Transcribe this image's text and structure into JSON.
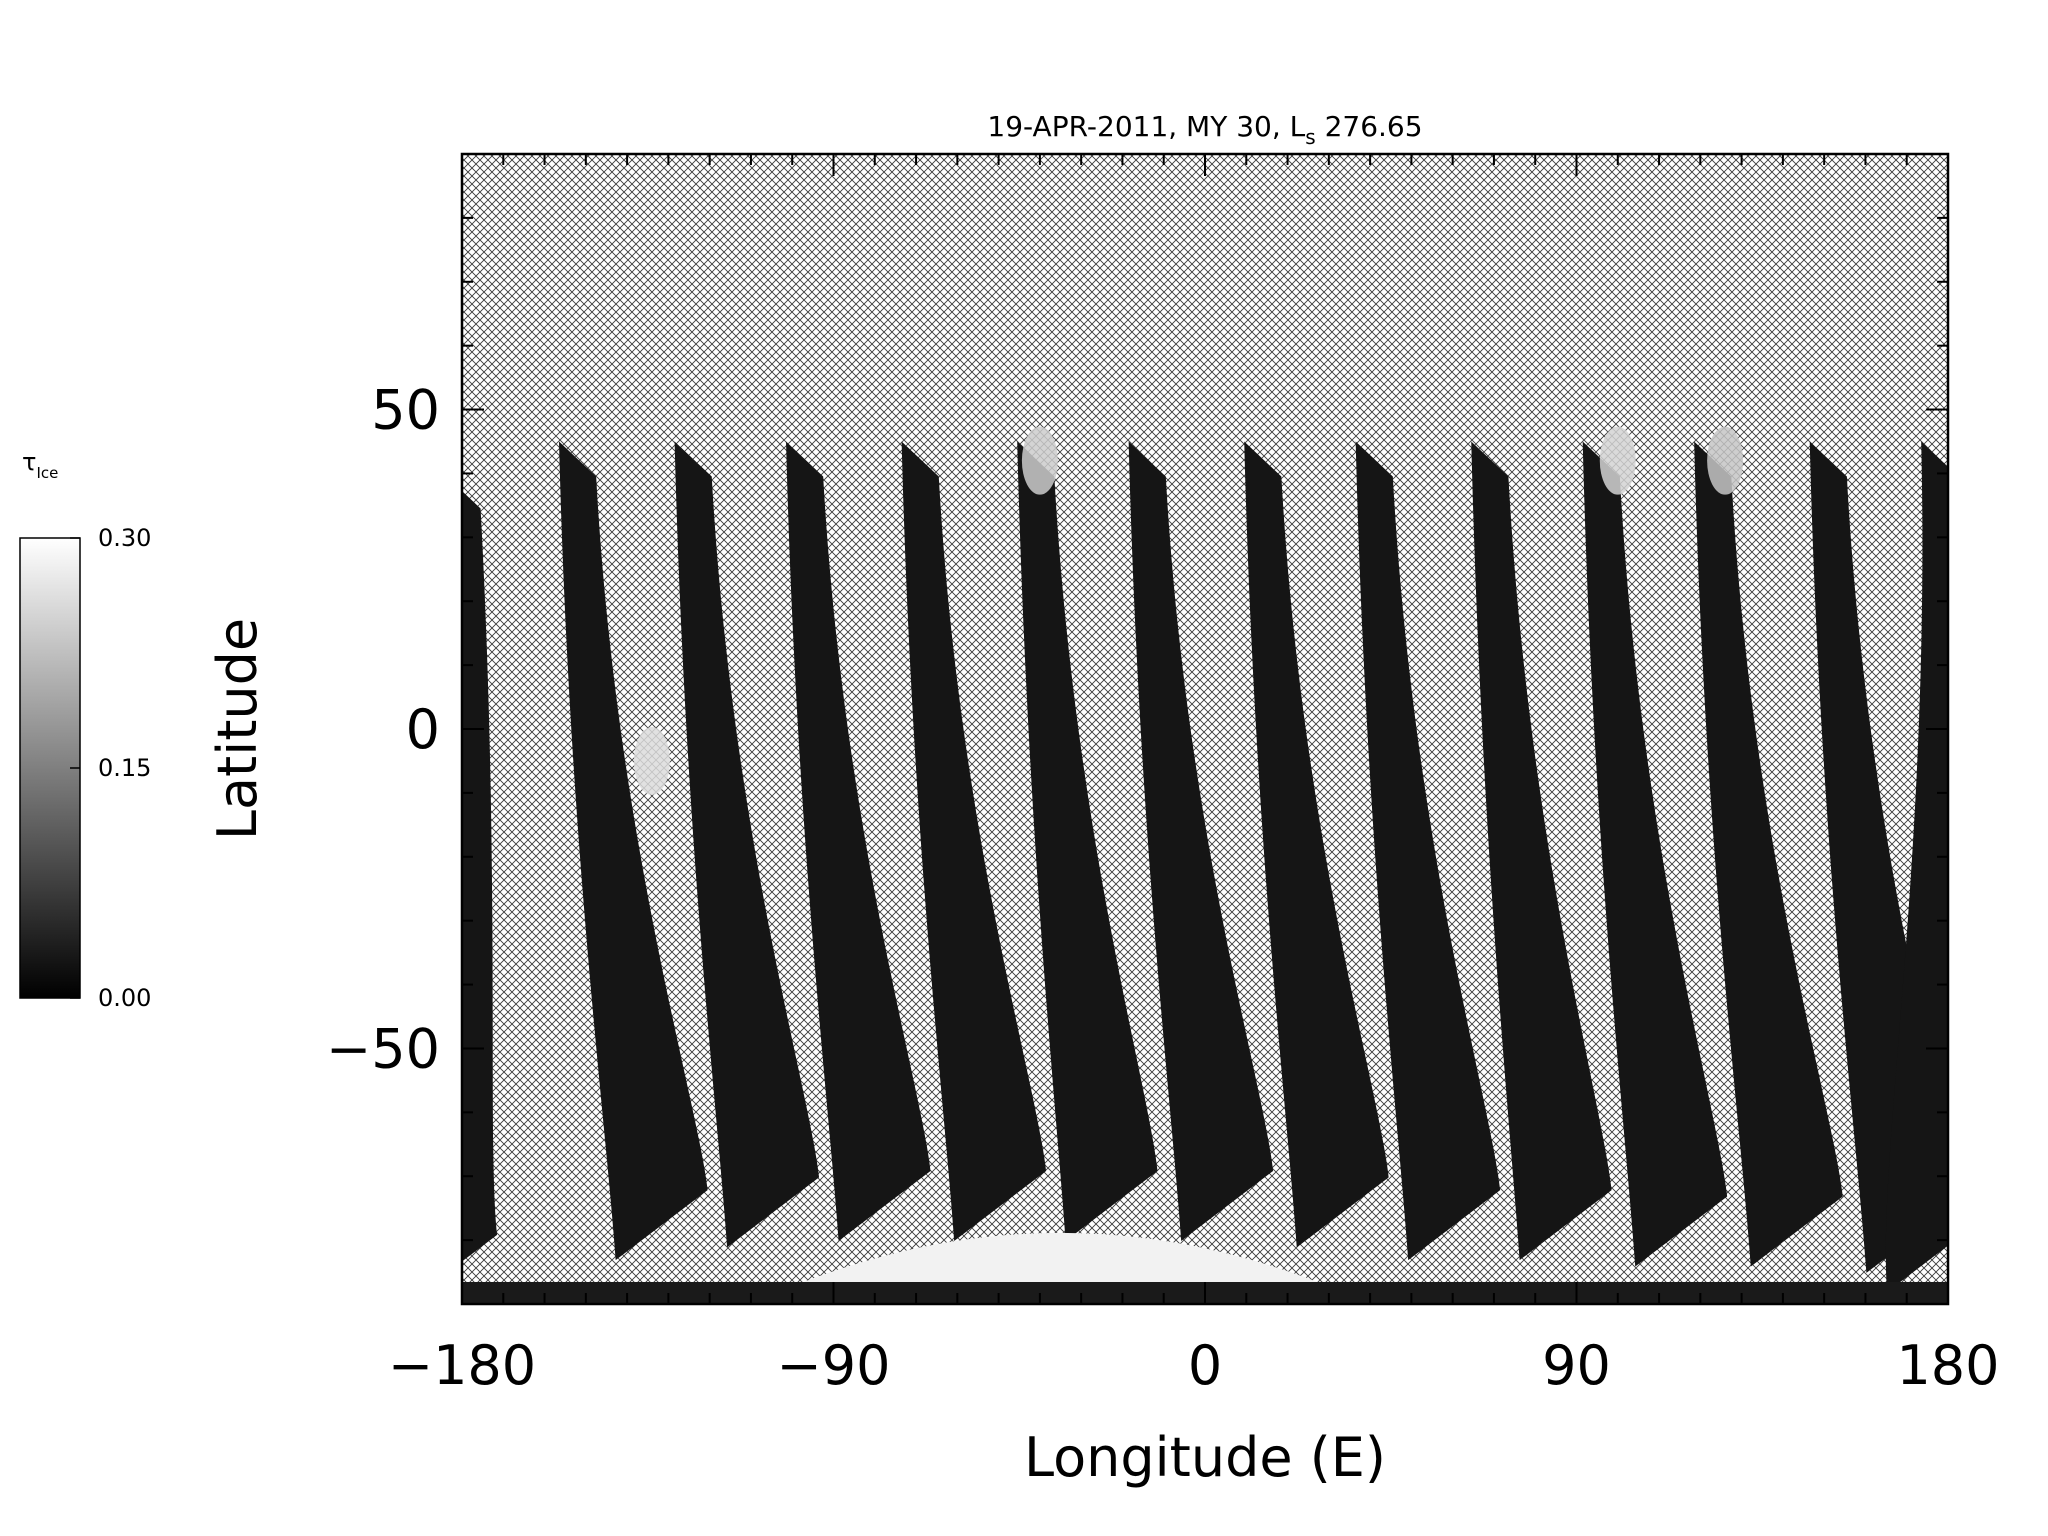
{
  "chart_data": {
    "type": "heatmap",
    "title_main": "19-APR-2011, MY 30,  L",
    "title_sub": "s",
    "title_value": " 276.65",
    "xlabel": "Longitude (E)",
    "ylabel": "Latitude",
    "xlim": [
      -180,
      180
    ],
    "ylim": [
      -90,
      90
    ],
    "xticks": [
      -180,
      -90,
      0,
      90,
      180
    ],
    "xtick_labels": [
      "−180",
      "−90",
      "0",
      "90",
      "180"
    ],
    "yticks": [
      -50,
      0,
      50
    ],
    "ytick_labels": [
      "−50",
      "0",
      "50"
    ],
    "x_minor_step": 10,
    "y_minor_step": 10,
    "colorbar": {
      "label_symbol": "τ",
      "label_sub": "Ice",
      "min": 0.0,
      "max": 0.3,
      "ticks": [
        0.0,
        0.15,
        0.3
      ],
      "tick_labels": [
        "0.00",
        "0.15",
        "0.30"
      ],
      "colormap": "grayscale"
    },
    "no_data_pattern": "crosshatch",
    "swaths": [
      {
        "north_lon": -180,
        "north_lat": 40,
        "south_lon": -179,
        "south_lat": -87
      },
      {
        "north_lon": -152,
        "north_lat": 45,
        "south_lon": -128,
        "south_lat": -80
      },
      {
        "north_lon": -124,
        "north_lat": 45,
        "south_lon": -101,
        "south_lat": -78
      },
      {
        "north_lon": -97,
        "north_lat": 45,
        "south_lon": -74,
        "south_lat": -77
      },
      {
        "north_lon": -69,
        "north_lat": 45,
        "south_lon": -46,
        "south_lat": -77
      },
      {
        "north_lon": -41,
        "north_lat": 45,
        "south_lon": -19,
        "south_lat": -77
      },
      {
        "north_lon": -14,
        "north_lat": 45,
        "south_lon": 9,
        "south_lat": -77
      },
      {
        "north_lon": 14,
        "north_lat": 45,
        "south_lon": 37,
        "south_lat": -78
      },
      {
        "north_lon": 41,
        "north_lat": 45,
        "south_lon": 64,
        "south_lat": -80
      },
      {
        "north_lon": 69,
        "north_lat": 45,
        "south_lon": 91,
        "south_lat": -80
      },
      {
        "north_lon": 96,
        "north_lat": 45,
        "south_lon": 119,
        "south_lat": -81
      },
      {
        "north_lon": 123,
        "north_lat": 45,
        "south_lon": 147,
        "south_lat": -81
      },
      {
        "north_lon": 151,
        "north_lat": 45,
        "south_lon": 175,
        "south_lat": -82
      },
      {
        "north_lon": 178,
        "north_lat": 45,
        "south_lon": 180,
        "south_lat": -85
      }
    ],
    "bright_patches": [
      {
        "lon": -134,
        "lat": -5,
        "value": 0.27
      },
      {
        "lon": -40,
        "lat": 42,
        "value": 0.25
      },
      {
        "lon": 100,
        "lat": 42,
        "value": 0.26
      },
      {
        "lon": 126,
        "lat": 42,
        "value": 0.24
      }
    ],
    "south_polar_cap": {
      "lon_min": -110,
      "lon_max": 40,
      "lat_top": -74,
      "value": 0.3
    }
  }
}
